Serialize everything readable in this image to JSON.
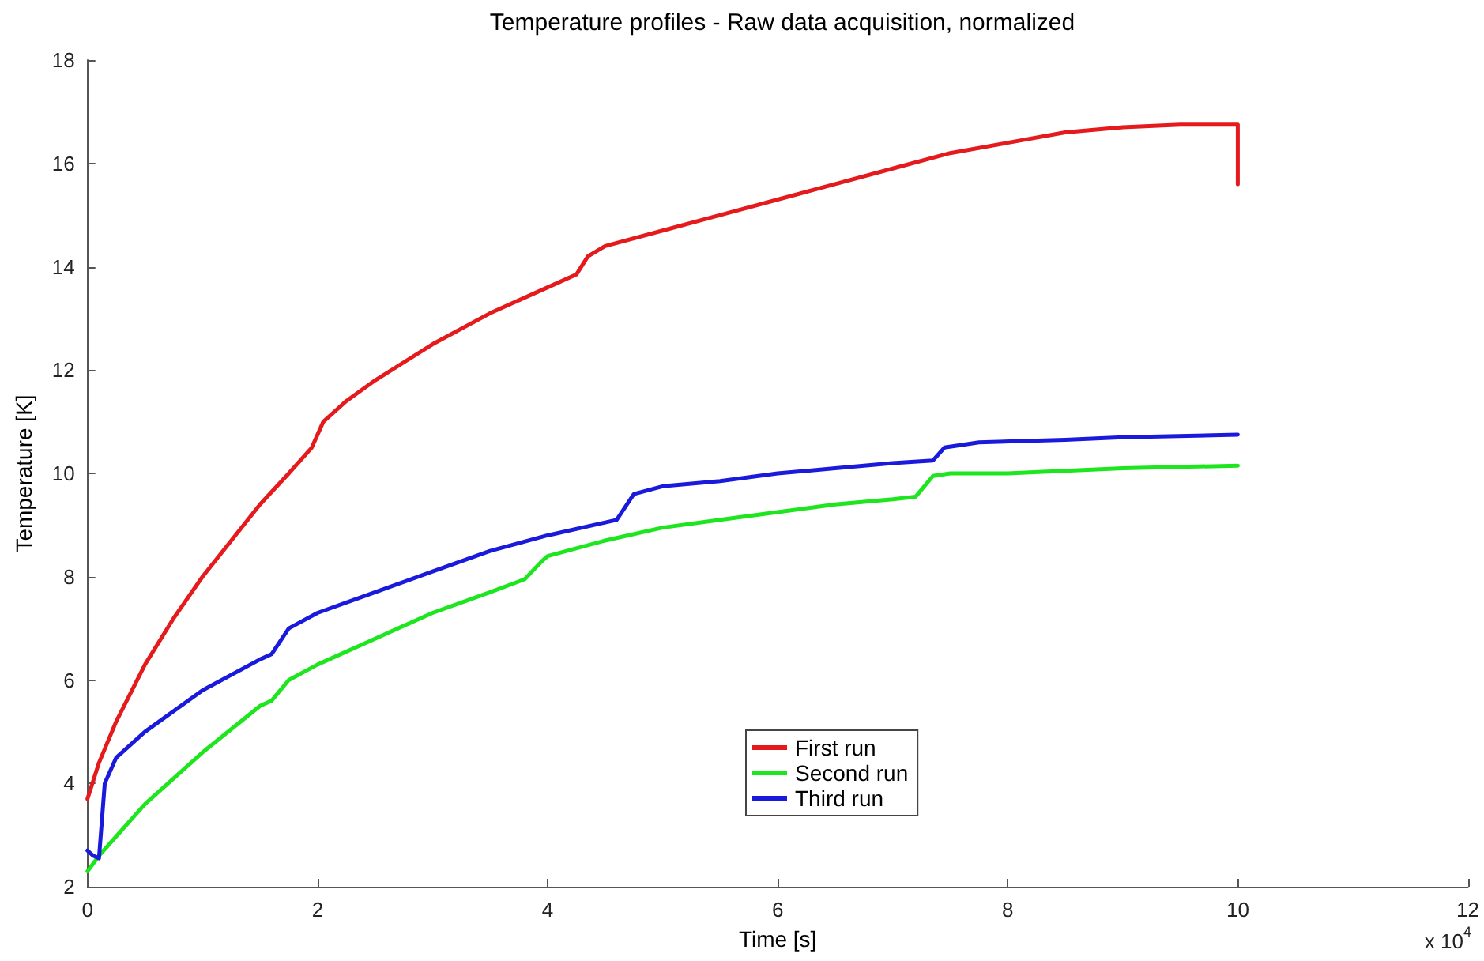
{
  "chart_data": {
    "type": "line",
    "title": "Temperature profiles - Raw data acquisition, normalized",
    "xlabel": "Time [s]",
    "ylabel": "Temperature [K]",
    "annotations": [
      "x 10$^{4}$"
    ],
    "xlim": [
      0,
      12
    ],
    "xticks": [
      0,
      2,
      4,
      6,
      8,
      10,
      12
    ],
    "ylim": [
      2,
      18
    ],
    "yticks": [
      2,
      4,
      6,
      8,
      10,
      12,
      14,
      16,
      18
    ],
    "grid": false,
    "legend": "bottom",
    "marker": "none",
    "line_style": "solid",
    "series": [
      {
        "name": "First run",
        "color": "#e41a1c",
        "x": [
          0,
          0.1,
          0.25,
          0.5,
          0.75,
          1,
          1.25,
          1.5,
          1.75,
          1.95,
          2.05,
          2.25,
          2.5,
          3,
          3.5,
          4,
          4.25,
          4.35,
          4.5,
          5,
          5.5,
          6,
          6.5,
          7,
          7.5,
          8,
          8.5,
          9,
          9.5,
          10,
          10
        ],
        "values": [
          3.7,
          4.4,
          5.2,
          6.3,
          7.2,
          8.0,
          8.7,
          9.4,
          10.0,
          10.5,
          11.0,
          11.4,
          11.8,
          12.5,
          13.1,
          13.6,
          13.85,
          14.2,
          14.4,
          14.7,
          15.0,
          15.3,
          15.6,
          15.9,
          16.2,
          16.4,
          16.6,
          16.7,
          16.75,
          16.75,
          15.6
        ]
      },
      {
        "name": "Second run",
        "color": "#1ee61e",
        "x": [
          0,
          0.1,
          0.5,
          1,
          1.5,
          1.6,
          1.75,
          2,
          2.5,
          3,
          3.5,
          3.8,
          3.95,
          4,
          4.5,
          5,
          5.5,
          6,
          6.5,
          7,
          7.2,
          7.35,
          7.5,
          8,
          9,
          10
        ],
        "values": [
          2.3,
          2.6,
          3.6,
          4.6,
          5.5,
          5.6,
          6.0,
          6.3,
          6.8,
          7.3,
          7.7,
          7.95,
          8.3,
          8.4,
          8.7,
          8.95,
          9.1,
          9.25,
          9.4,
          9.5,
          9.55,
          9.95,
          10.0,
          10.0,
          10.1,
          10.15
        ]
      },
      {
        "name": "Third run",
        "color": "#1a1adc",
        "x": [
          0,
          0.05,
          0.1,
          0.15,
          0.25,
          0.5,
          1,
          1.5,
          1.6,
          1.75,
          2,
          2.5,
          3,
          3.5,
          4,
          4.5,
          4.6,
          4.75,
          5,
          5.5,
          6,
          6.5,
          7,
          7.35,
          7.45,
          7.75,
          8.5,
          9,
          10
        ],
        "values": [
          2.7,
          2.6,
          2.55,
          4.0,
          4.5,
          5.0,
          5.8,
          6.4,
          6.5,
          7.0,
          7.3,
          7.7,
          8.1,
          8.5,
          8.8,
          9.05,
          9.1,
          9.6,
          9.75,
          9.85,
          10.0,
          10.1,
          10.2,
          10.25,
          10.5,
          10.6,
          10.65,
          10.7,
          10.75
        ]
      }
    ]
  }
}
